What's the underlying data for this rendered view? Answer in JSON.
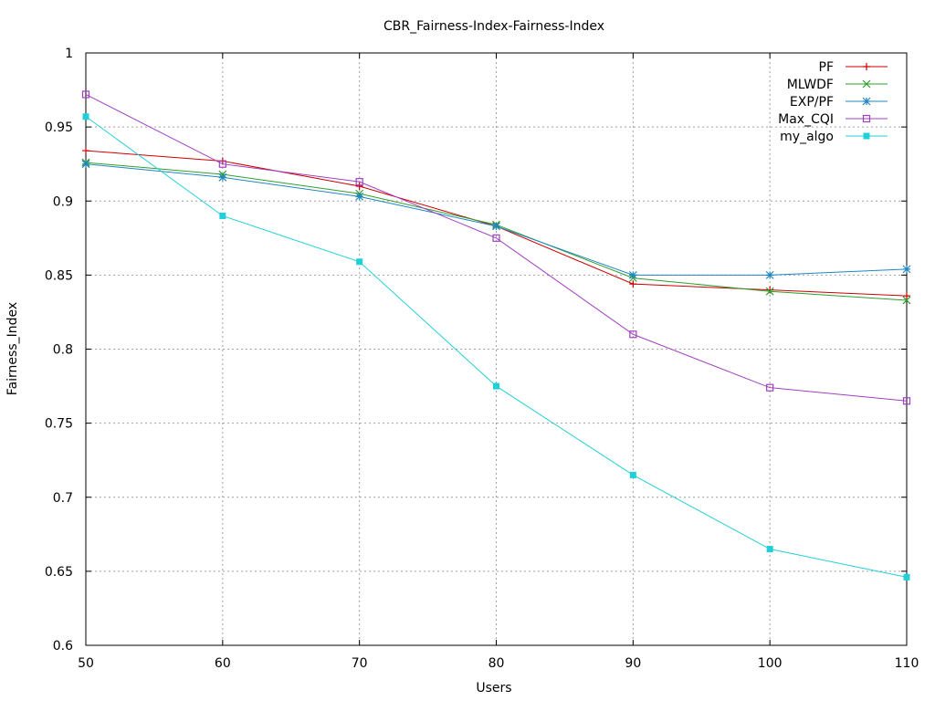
{
  "chart_data": {
    "type": "line",
    "title": "CBR_Fairness-Index-Fairness-Index",
    "xlabel": "Users",
    "ylabel": "Fairness_Index",
    "xlim": [
      50,
      110
    ],
    "ylim": [
      0.6,
      1.0
    ],
    "xticks": [
      "50",
      "60",
      "70",
      "80",
      "90",
      "100",
      "110"
    ],
    "yticks": [
      "0.6",
      "0.65",
      "0.7",
      "0.75",
      "0.8",
      "0.85",
      "0.9",
      "0.95",
      "1"
    ],
    "grid": true,
    "legend_position": "top-right",
    "x": [
      50,
      60,
      70,
      80,
      90,
      100,
      110
    ],
    "series": [
      {
        "name": "PF",
        "color": "#cc0000",
        "marker": "plus",
        "values": [
          0.934,
          0.927,
          0.91,
          0.883,
          0.844,
          0.84,
          0.836
        ]
      },
      {
        "name": "MLWDF",
        "color": "#2e9e2e",
        "marker": "cross",
        "values": [
          0.926,
          0.918,
          0.905,
          0.884,
          0.848,
          0.839,
          0.833
        ]
      },
      {
        "name": "EXP/PF",
        "color": "#1f87c0",
        "marker": "star",
        "values": [
          0.925,
          0.916,
          0.903,
          0.883,
          0.85,
          0.85,
          0.854
        ]
      },
      {
        "name": "Max_CQI",
        "color": "#a040c0",
        "marker": "open-square",
        "values": [
          0.972,
          0.925,
          0.913,
          0.875,
          0.81,
          0.774,
          0.765
        ]
      },
      {
        "name": "my_algo",
        "color": "#20d0d8",
        "marker": "filled-square",
        "values": [
          0.957,
          0.89,
          0.859,
          0.775,
          0.715,
          0.665,
          0.646
        ]
      }
    ]
  }
}
